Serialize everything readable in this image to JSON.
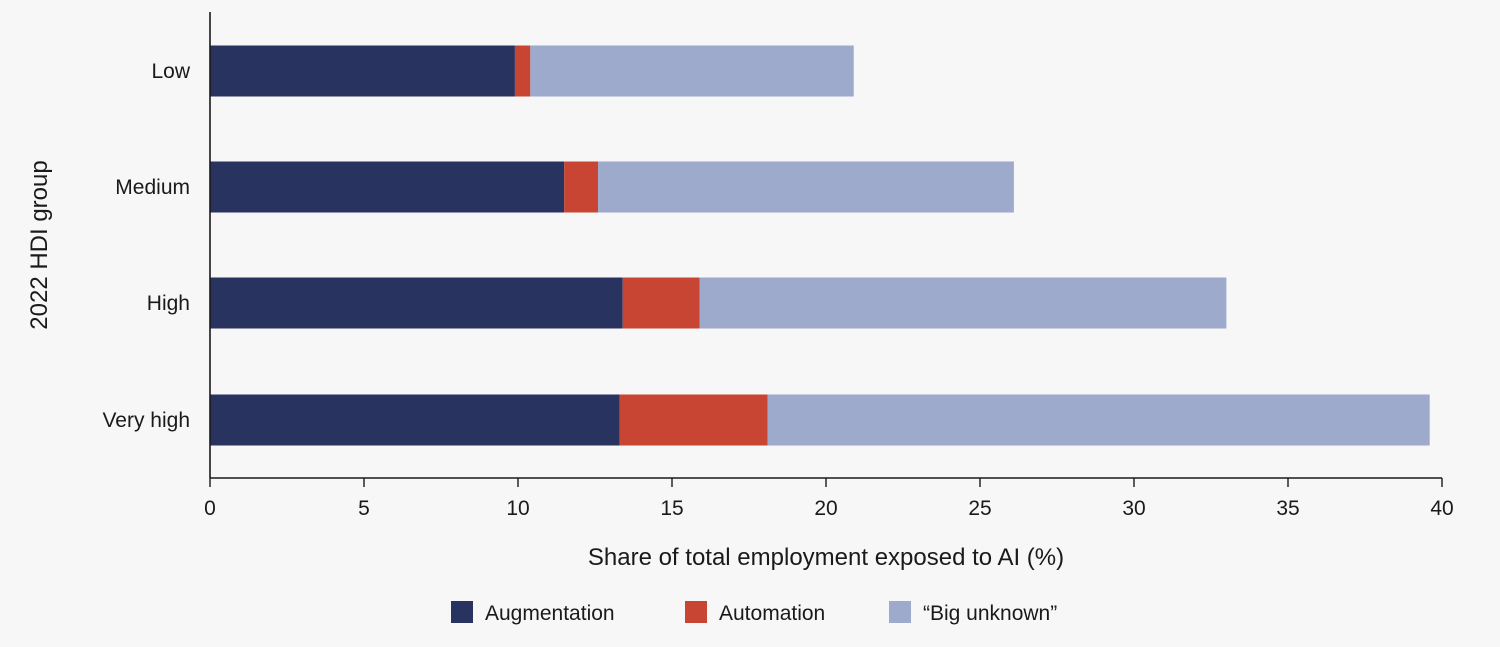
{
  "chart_data": {
    "type": "bar",
    "orientation": "horizontal",
    "stacked": true,
    "categories": [
      "Low",
      "Medium",
      "High",
      "Very high"
    ],
    "series": [
      {
        "name": "Augmentation",
        "color": "#283360",
        "values": [
          9.9,
          11.5,
          13.4,
          13.3
        ]
      },
      {
        "name": "Automation",
        "color": "#c84533",
        "values": [
          0.5,
          1.1,
          2.5,
          4.8
        ]
      },
      {
        "name": "“Big unknown”",
        "color": "#9eaacb",
        "values": [
          10.5,
          13.5,
          17.1,
          21.5
        ]
      }
    ],
    "xlabel": "Share of total employment exposed to AI (%)",
    "ylabel": "2022 HDI group",
    "xlim": [
      0,
      40
    ],
    "xticks": [
      0,
      5,
      10,
      15,
      20,
      25,
      30,
      35,
      40
    ],
    "grid": false,
    "legend_position": "bottom"
  }
}
